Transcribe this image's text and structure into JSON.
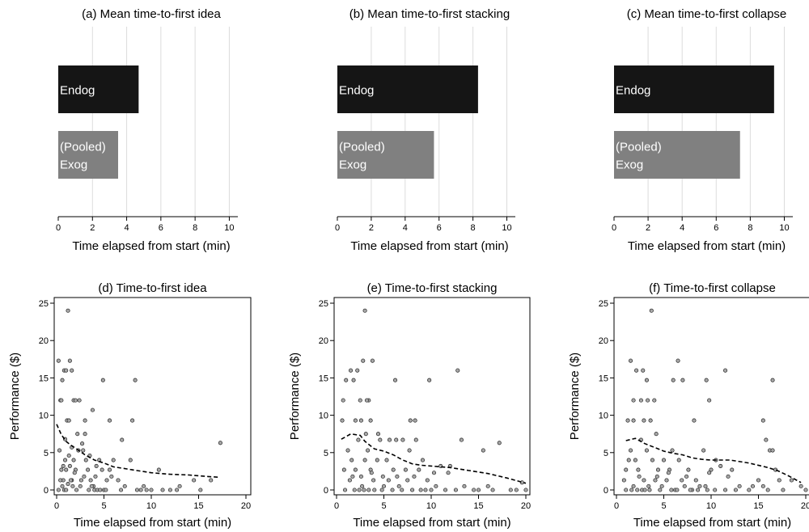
{
  "chart_data": [
    {
      "id": "a",
      "type": "bar",
      "title": "(a) Mean time-to-first idea",
      "xlabel": "Time elapsed from start (min)",
      "xlim": [
        0,
        10.5
      ],
      "xticks": [
        0,
        2,
        4,
        6,
        8,
        10
      ],
      "bars": [
        {
          "label_lines": [
            "Endog"
          ],
          "value": 4.7,
          "color": "#151515",
          "label_color": "#ffffff"
        },
        {
          "label_lines": [
            "(Pooled)",
            " Exog"
          ],
          "value": 3.5,
          "color": "#808080",
          "label_color": "#ffffff"
        }
      ]
    },
    {
      "id": "b",
      "type": "bar",
      "title": "(b) Mean time-to-first stacking",
      "xlabel": "Time elapsed from start (min)",
      "xlim": [
        0,
        10.5
      ],
      "xticks": [
        0,
        2,
        4,
        6,
        8,
        10
      ],
      "bars": [
        {
          "label_lines": [
            "Endog"
          ],
          "value": 8.3,
          "color": "#151515",
          "label_color": "#ffffff"
        },
        {
          "label_lines": [
            "(Pooled)",
            " Exog"
          ],
          "value": 5.7,
          "color": "#808080",
          "label_color": "#ffffff"
        }
      ]
    },
    {
      "id": "c",
      "type": "bar",
      "title": "(c) Mean time-to-first collapse",
      "xlabel": "Time elapsed from start (min)",
      "xlim": [
        0,
        10.5
      ],
      "xticks": [
        0,
        2,
        4,
        6,
        8,
        10
      ],
      "bars": [
        {
          "label_lines": [
            "Endog"
          ],
          "value": 9.4,
          "color": "#151515",
          "label_color": "#ffffff"
        },
        {
          "label_lines": [
            "(Pooled)",
            " Exog"
          ],
          "value": 7.4,
          "color": "#808080",
          "label_color": "#ffffff"
        }
      ]
    },
    {
      "id": "d",
      "type": "scatter",
      "title": "(d) Time-to-first idea",
      "xlabel": "Time elapsed from start (min)",
      "ylabel": "Performance ($)",
      "xlim": [
        0,
        20
      ],
      "ylim": [
        0,
        25
      ],
      "xticks": [
        0,
        5,
        10,
        15,
        20
      ],
      "yticks": [
        0,
        5,
        10,
        15,
        20,
        25
      ],
      "points": [
        [
          0.2,
          17.3
        ],
        [
          0.4,
          12
        ],
        [
          0.6,
          14.7
        ],
        [
          0.8,
          16
        ],
        [
          1,
          16
        ],
        [
          1.2,
          24
        ],
        [
          1.4,
          17.3
        ],
        [
          1.6,
          16
        ],
        [
          0.5,
          12
        ],
        [
          1.1,
          9.3
        ],
        [
          1.3,
          9.3
        ],
        [
          1.8,
          12
        ],
        [
          2,
          12
        ],
        [
          2.4,
          12
        ],
        [
          2.2,
          7.5
        ],
        [
          3,
          9.3
        ],
        [
          3,
          7.5
        ],
        [
          3.8,
          10.7
        ],
        [
          4.9,
          14.7
        ],
        [
          5.6,
          9.3
        ],
        [
          8,
          9.3
        ],
        [
          8.3,
          14.7
        ],
        [
          0.3,
          5.3
        ],
        [
          0.5,
          2.7
        ],
        [
          0.7,
          1.3
        ],
        [
          0.9,
          4
        ],
        [
          1,
          2.7
        ],
        [
          1.2,
          0.8
        ],
        [
          1.4,
          3.2
        ],
        [
          1.6,
          1.3
        ],
        [
          1.8,
          4
        ],
        [
          2,
          2.7
        ],
        [
          2.3,
          5.3
        ],
        [
          2.5,
          0.5
        ],
        [
          2.8,
          5.3
        ],
        [
          3.1,
          4
        ],
        [
          3.3,
          2.7
        ],
        [
          3.6,
          1.3
        ],
        [
          3.9,
          0.5
        ],
        [
          4.2,
          3.2
        ],
        [
          4.5,
          4
        ],
        [
          4.8,
          2.7
        ],
        [
          5,
          0
        ],
        [
          5.3,
          1.3
        ],
        [
          5.6,
          2.7
        ],
        [
          6,
          4
        ],
        [
          6.5,
          1.3
        ],
        [
          6.9,
          6.7
        ],
        [
          7.2,
          0.5
        ],
        [
          7.8,
          4
        ],
        [
          8.5,
          0
        ],
        [
          9.2,
          0.5
        ],
        [
          10,
          0
        ],
        [
          10.8,
          2.7
        ],
        [
          12,
          0
        ],
        [
          13,
          0.5
        ],
        [
          14.5,
          1.3
        ],
        [
          15.2,
          0
        ],
        [
          16.3,
          1.3
        ],
        [
          17.3,
          6.3
        ],
        [
          0.2,
          0
        ],
        [
          0.6,
          0.5
        ],
        [
          0.8,
          0
        ],
        [
          1,
          0
        ],
        [
          1.5,
          1.3
        ],
        [
          1.7,
          0.5
        ],
        [
          2.1,
          0
        ],
        [
          2.6,
          1.3
        ],
        [
          3.4,
          0
        ],
        [
          3.7,
          0.5
        ],
        [
          4,
          0
        ],
        [
          4.3,
          0
        ],
        [
          4.6,
          0
        ],
        [
          5.2,
          0
        ],
        [
          6.8,
          0
        ],
        [
          8.9,
          0
        ],
        [
          9.5,
          0
        ],
        [
          11.2,
          0
        ],
        [
          12.7,
          0
        ],
        [
          0.4,
          1.3
        ],
        [
          0.7,
          3.2
        ],
        [
          1.9,
          2.3
        ],
        [
          2.9,
          1.8
        ],
        [
          4.1,
          1.8
        ],
        [
          5.8,
          1.8
        ],
        [
          1.3,
          4.6
        ],
        [
          2.7,
          6.2
        ],
        [
          0.9,
          6.8
        ],
        [
          1.6,
          5.7
        ],
        [
          3.5,
          4.6
        ]
      ],
      "trend": [
        [
          0,
          8.8
        ],
        [
          0.5,
          7.4
        ],
        [
          1,
          6.5
        ],
        [
          1.5,
          6
        ],
        [
          2,
          5.6
        ],
        [
          3,
          4.7
        ],
        [
          4,
          4
        ],
        [
          5,
          3.6
        ],
        [
          6,
          3.1
        ],
        [
          7,
          2.9
        ],
        [
          8,
          2.7
        ],
        [
          10,
          2.3
        ],
        [
          12,
          2.1
        ],
        [
          14,
          2
        ],
        [
          16,
          1.8
        ],
        [
          17.2,
          1.7
        ]
      ]
    },
    {
      "id": "e",
      "type": "scatter",
      "title": "(e) Time-to-first stacking",
      "xlabel": "Time elapsed from start (min)",
      "ylabel": "Performance ($)",
      "xlim": [
        0,
        20
      ],
      "ylim": [
        0,
        25
      ],
      "xticks": [
        0,
        5,
        10,
        15,
        20
      ],
      "yticks": [
        0,
        5,
        10,
        15,
        20,
        25
      ],
      "points": [
        [
          0.6,
          9.3
        ],
        [
          0.7,
          12
        ],
        [
          1,
          14.7
        ],
        [
          1.5,
          16
        ],
        [
          1.8,
          14.7
        ],
        [
          2.2,
          16
        ],
        [
          2.5,
          12
        ],
        [
          2.8,
          17.3
        ],
        [
          3,
          24
        ],
        [
          3.4,
          12
        ],
        [
          3.8,
          17.3
        ],
        [
          2,
          9.3
        ],
        [
          2.6,
          9.3
        ],
        [
          3.2,
          12
        ],
        [
          3.6,
          9.3
        ],
        [
          3.1,
          7.5
        ],
        [
          4.4,
          7.5
        ],
        [
          6.2,
          14.7
        ],
        [
          7.8,
          9.3
        ],
        [
          8.3,
          9.3
        ],
        [
          9.8,
          14.7
        ],
        [
          12.8,
          16
        ],
        [
          13.2,
          6.7
        ],
        [
          14.5,
          0
        ],
        [
          15.5,
          5.3
        ],
        [
          17.2,
          6.3
        ],
        [
          19.6,
          1
        ],
        [
          20,
          0
        ],
        [
          0.8,
          2.7
        ],
        [
          1.2,
          5.3
        ],
        [
          1.4,
          1.3
        ],
        [
          1.6,
          4
        ],
        [
          2,
          2.7
        ],
        [
          2.3,
          6.7
        ],
        [
          2.7,
          0.5
        ],
        [
          3,
          4
        ],
        [
          3.3,
          5.3
        ],
        [
          3.6,
          2.7
        ],
        [
          4,
          0
        ],
        [
          4.3,
          4
        ],
        [
          4.6,
          6.7
        ],
        [
          5,
          0.5
        ],
        [
          5.3,
          4
        ],
        [
          5.6,
          6.7
        ],
        [
          6,
          2.7
        ],
        [
          6.3,
          6.7
        ],
        [
          6.6,
          0.5
        ],
        [
          7,
          6.7
        ],
        [
          7.3,
          2.7
        ],
        [
          7.7,
          5.3
        ],
        [
          8,
          0
        ],
        [
          8.4,
          6.7
        ],
        [
          8.7,
          2.7
        ],
        [
          9.1,
          4
        ],
        [
          9.4,
          0
        ],
        [
          10,
          0
        ],
        [
          10.5,
          0.5
        ],
        [
          11,
          3.2
        ],
        [
          11.5,
          0
        ],
        [
          12,
          3.2
        ],
        [
          12.6,
          0
        ],
        [
          13.5,
          0.5
        ],
        [
          15,
          0
        ],
        [
          16,
          0.5
        ],
        [
          16.5,
          0
        ],
        [
          18.4,
          0
        ],
        [
          19,
          0
        ],
        [
          0.9,
          0
        ],
        [
          1.9,
          0
        ],
        [
          2.4,
          0
        ],
        [
          2.9,
          0
        ],
        [
          3.4,
          0
        ],
        [
          3.9,
          1.3
        ],
        [
          4.8,
          0
        ],
        [
          5.5,
          1.3
        ],
        [
          5.9,
          0
        ],
        [
          6.9,
          0
        ],
        [
          7.5,
          1.3
        ],
        [
          8.9,
          0
        ],
        [
          9.6,
          1.3
        ],
        [
          1.7,
          1.8
        ],
        [
          2.6,
          1.8
        ],
        [
          3.7,
          2.3
        ],
        [
          4.9,
          1.8
        ],
        [
          6.4,
          1.8
        ],
        [
          8.2,
          1.8
        ],
        [
          10.3,
          2.3
        ],
        [
          11.8,
          2.3
        ]
      ],
      "trend": [
        [
          0.5,
          6.8
        ],
        [
          1.5,
          7.5
        ],
        [
          2.5,
          7.3
        ],
        [
          3,
          6.5
        ],
        [
          4,
          5.5
        ],
        [
          5,
          5.2
        ],
        [
          6,
          4.7
        ],
        [
          7,
          4
        ],
        [
          8,
          3.5
        ],
        [
          9,
          3.3
        ],
        [
          10,
          3.2
        ],
        [
          12,
          3
        ],
        [
          14,
          2.6
        ],
        [
          16,
          2.2
        ],
        [
          18,
          1.6
        ],
        [
          20,
          0.9
        ]
      ]
    },
    {
      "id": "f",
      "type": "scatter",
      "title": "(f) Time-to-first collapse",
      "xlabel": "Time elapsed from start (min)",
      "ylabel": "Performance ($)",
      "xlim": [
        0,
        20
      ],
      "ylim": [
        0,
        25
      ],
      "xticks": [
        0,
        5,
        10,
        15,
        20
      ],
      "yticks": [
        0,
        5,
        10,
        15,
        20,
        25
      ],
      "points": [
        [
          1.5,
          17.3
        ],
        [
          1.8,
          12
        ],
        [
          2.1,
          16
        ],
        [
          2.6,
          12
        ],
        [
          2.8,
          16
        ],
        [
          3.3,
          12
        ],
        [
          3.7,
          24
        ],
        [
          4,
          12
        ],
        [
          3.2,
          14.7
        ],
        [
          1.2,
          9.3
        ],
        [
          1.8,
          9.3
        ],
        [
          2.9,
          9.3
        ],
        [
          3.6,
          9.3
        ],
        [
          4.2,
          7.5
        ],
        [
          6,
          14.7
        ],
        [
          6.5,
          17.3
        ],
        [
          7,
          14.7
        ],
        [
          8.2,
          9.3
        ],
        [
          9.5,
          14.7
        ],
        [
          9.8,
          12
        ],
        [
          11.5,
          16
        ],
        [
          15.5,
          9.3
        ],
        [
          16.5,
          14.7
        ],
        [
          15.8,
          6.7
        ],
        [
          16.2,
          5.3
        ],
        [
          16.5,
          5.3
        ],
        [
          0.8,
          1.3
        ],
        [
          1,
          2.7
        ],
        [
          1.3,
          4
        ],
        [
          1.5,
          5.3
        ],
        [
          1.8,
          0.5
        ],
        [
          2,
          4
        ],
        [
          2.3,
          2.7
        ],
        [
          2.6,
          6.7
        ],
        [
          2.9,
          1.3
        ],
        [
          3.2,
          5.3
        ],
        [
          3.5,
          0
        ],
        [
          3.8,
          4
        ],
        [
          4.1,
          1.3
        ],
        [
          4.4,
          2.7
        ],
        [
          4.8,
          0.5
        ],
        [
          5,
          4
        ],
        [
          5.3,
          1.3
        ],
        [
          5.6,
          2.7
        ],
        [
          5.9,
          5.3
        ],
        [
          6.2,
          0
        ],
        [
          6.6,
          4
        ],
        [
          6.9,
          1.3
        ],
        [
          7.2,
          0.5
        ],
        [
          7.6,
          2.7
        ],
        [
          8,
          0
        ],
        [
          8.4,
          1.3
        ],
        [
          8.8,
          0.5
        ],
        [
          9.2,
          5.3
        ],
        [
          9.6,
          0
        ],
        [
          10,
          2.7
        ],
        [
          10.5,
          4
        ],
        [
          11,
          3.2
        ],
        [
          11.5,
          0
        ],
        [
          12.2,
          2.7
        ],
        [
          13,
          0.5
        ],
        [
          14,
          0
        ],
        [
          15,
          1.3
        ],
        [
          15.5,
          0.5
        ],
        [
          16.8,
          2.7
        ],
        [
          17.2,
          1.3
        ],
        [
          17.6,
          0
        ],
        [
          18.5,
          1.3
        ],
        [
          19.5,
          0.5
        ],
        [
          20,
          0
        ],
        [
          1,
          0
        ],
        [
          1.6,
          0
        ],
        [
          2.2,
          0
        ],
        [
          2.7,
          0
        ],
        [
          3,
          0
        ],
        [
          3.4,
          0.5
        ],
        [
          4.6,
          0
        ],
        [
          5.8,
          0
        ],
        [
          6.4,
          0
        ],
        [
          7.8,
          0
        ],
        [
          8.6,
          0
        ],
        [
          9.4,
          0.5
        ],
        [
          10.4,
          0
        ],
        [
          12.6,
          0
        ],
        [
          14.4,
          0.5
        ],
        [
          16,
          0
        ],
        [
          2.4,
          1.8
        ],
        [
          4.3,
          1.8
        ],
        [
          5.5,
          2.3
        ],
        [
          7.4,
          1.8
        ],
        [
          9.8,
          2.3
        ],
        [
          11.8,
          1.8
        ]
      ],
      "trend": [
        [
          1,
          6.6
        ],
        [
          2,
          6.9
        ],
        [
          3,
          6.2
        ],
        [
          4,
          5.7
        ],
        [
          5,
          5.2
        ],
        [
          6,
          4.9
        ],
        [
          7,
          4.7
        ],
        [
          8,
          4.3
        ],
        [
          9,
          4.1
        ],
        [
          10,
          4
        ],
        [
          12,
          4
        ],
        [
          14,
          3.6
        ],
        [
          16,
          3
        ],
        [
          17,
          2.6
        ],
        [
          18,
          2
        ],
        [
          19.5,
          1
        ]
      ]
    }
  ]
}
